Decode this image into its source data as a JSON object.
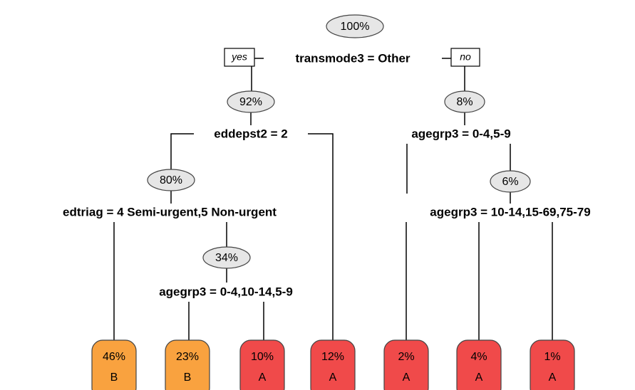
{
  "tree": {
    "yes_label": "yes",
    "no_label": "no",
    "nodes": [
      {
        "pct": "100%",
        "split": "transmode3 = Other"
      },
      {
        "pct": "92%",
        "split": "eddepst2 = 2"
      },
      {
        "pct": "80%",
        "split": "edtriag = 4 Semi-urgent,5 Non-urgent"
      },
      {
        "pct": "34%",
        "split": "agegrp3 = 0-4,10-14,5-9"
      },
      {
        "pct": "8%",
        "split": "agegrp3 = 0-4,5-9"
      },
      {
        "pct": "6%",
        "split": "agegrp3 = 10-14,15-69,75-79"
      }
    ],
    "leaves": [
      {
        "pct": "46%",
        "class": "B"
      },
      {
        "pct": "23%",
        "class": "B"
      },
      {
        "pct": "10%",
        "class": "A"
      },
      {
        "pct": "12%",
        "class": "A"
      },
      {
        "pct": "2%",
        "class": "A"
      },
      {
        "pct": "4%",
        "class": "A"
      },
      {
        "pct": "1%",
        "class": "A"
      }
    ]
  }
}
